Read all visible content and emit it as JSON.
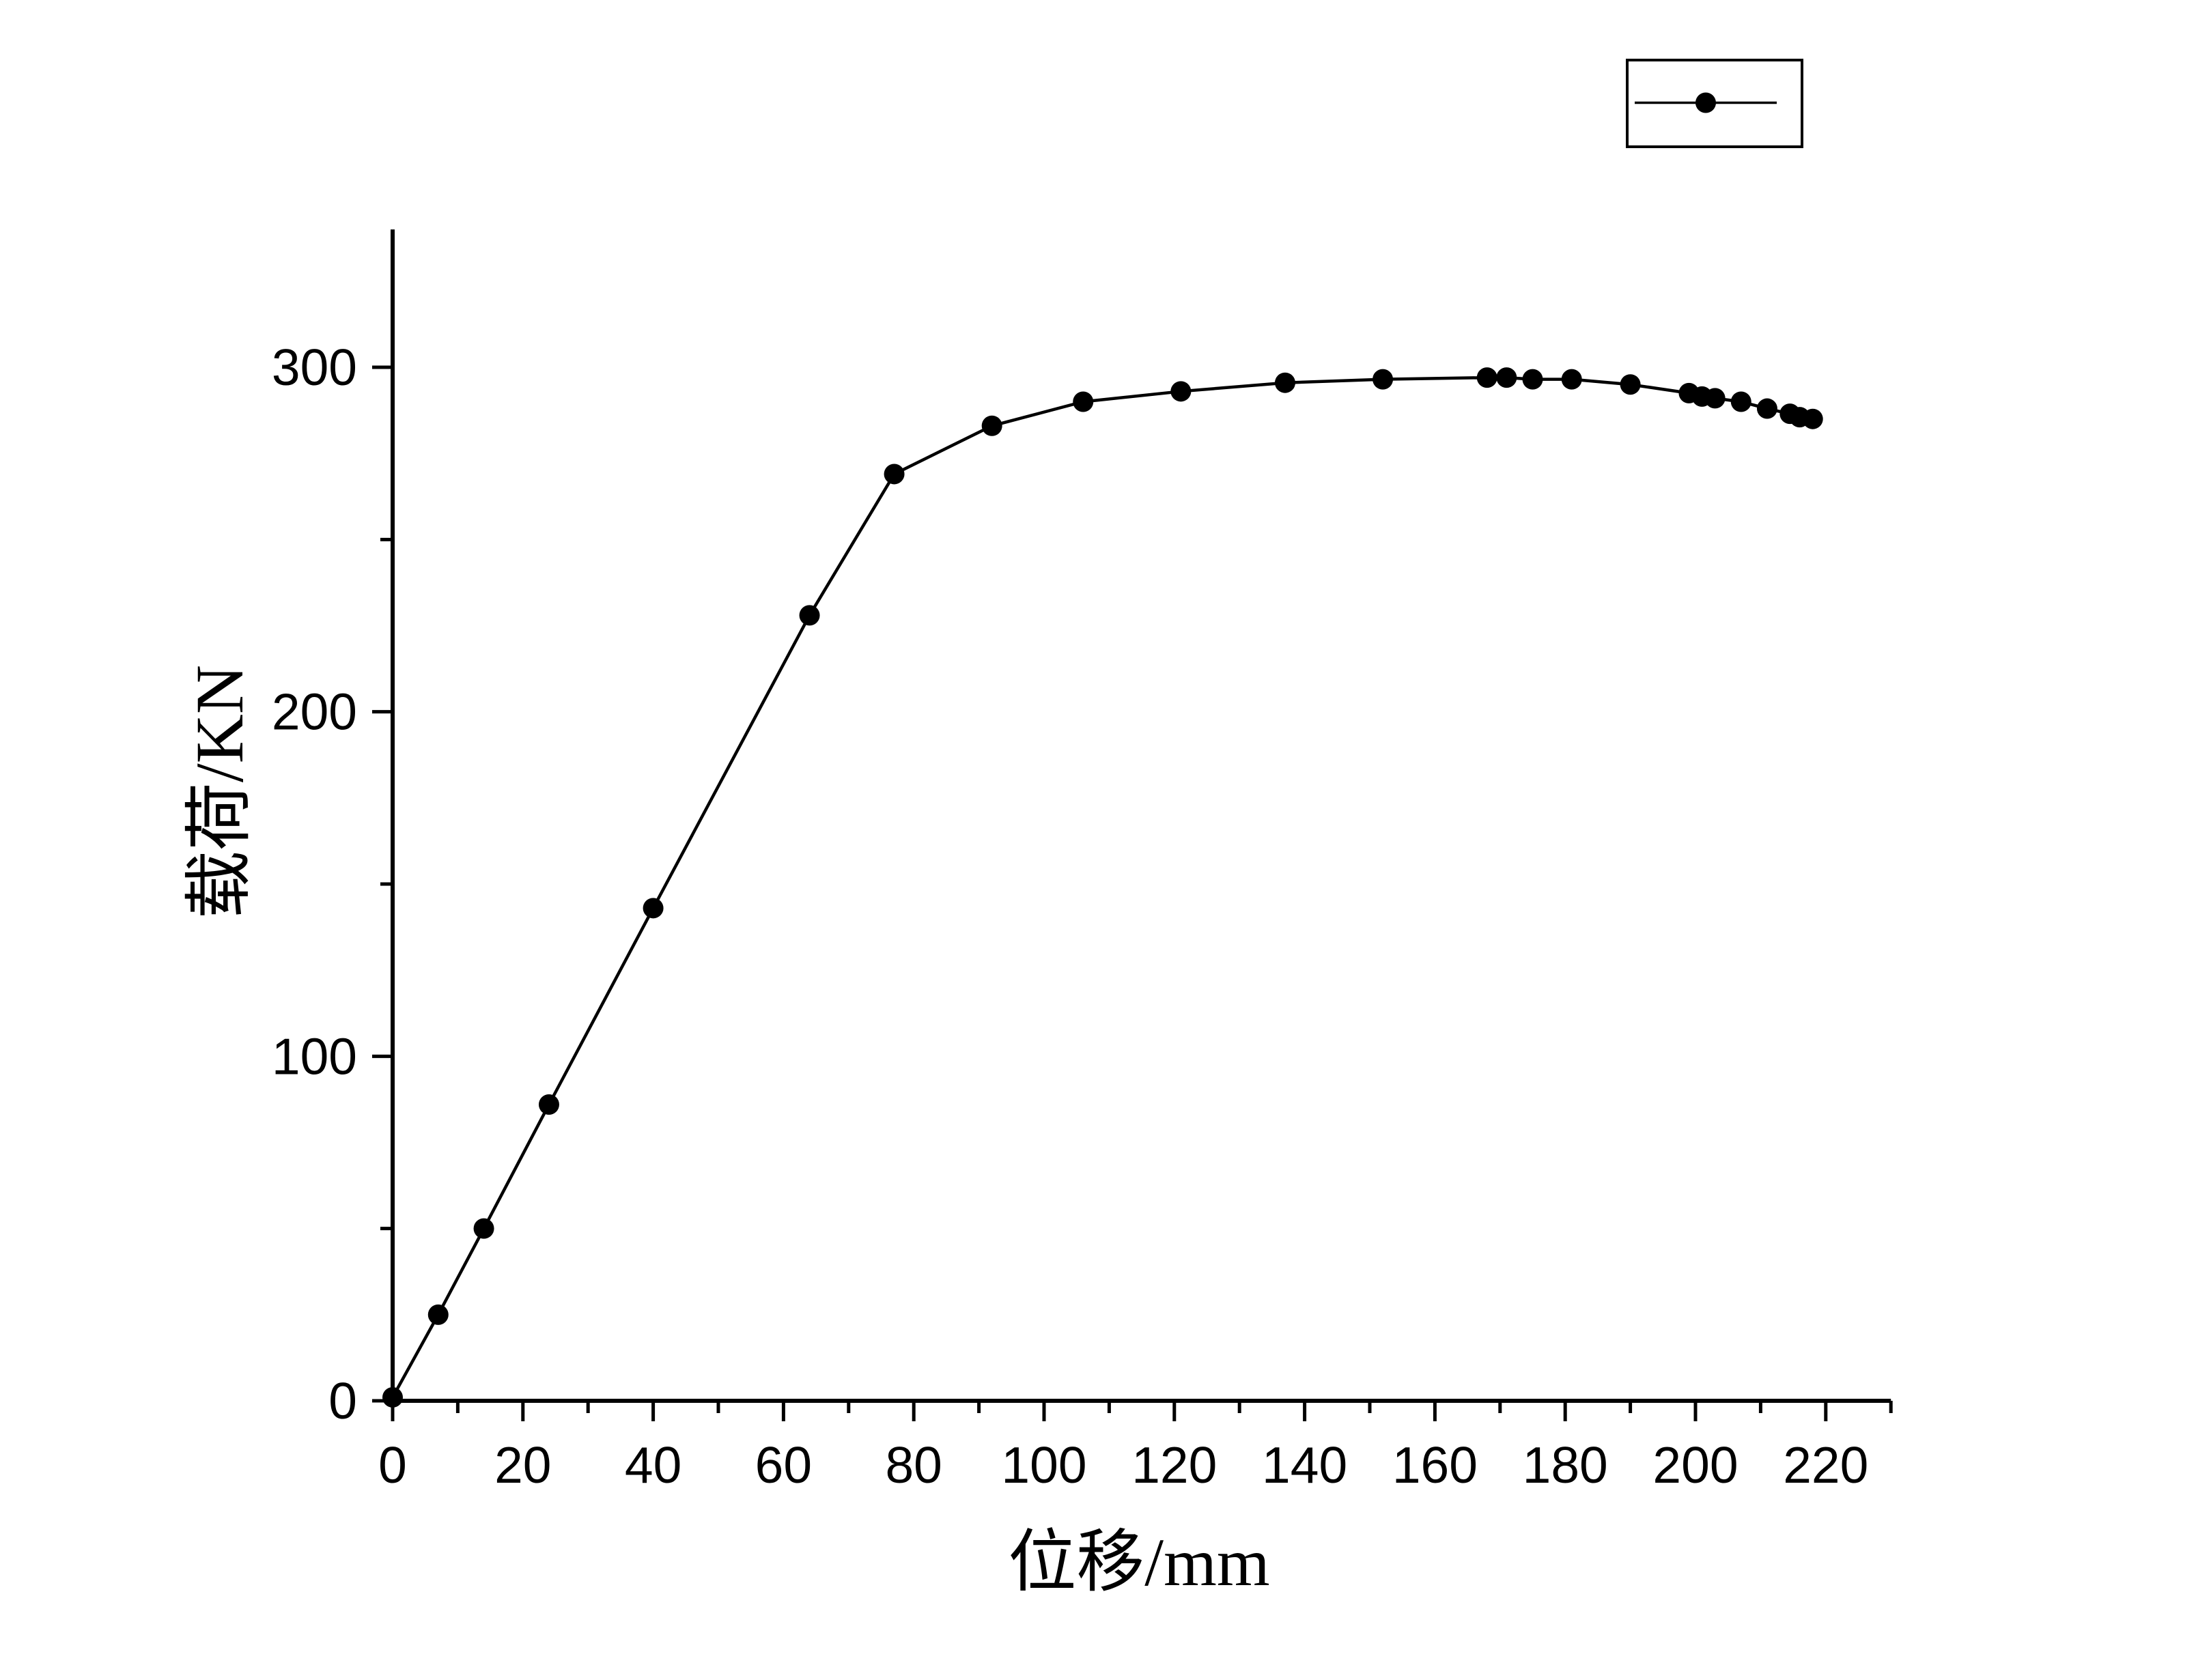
{
  "figure": {
    "background": "#ffffff",
    "ink_color": "#000000"
  },
  "chart_data": {
    "type": "line",
    "title": "",
    "xlabel": "位移/mm",
    "ylabel": "载荷/KN",
    "xlim": [
      0,
      230
    ],
    "ylim": [
      0,
      340
    ],
    "grid": false,
    "axes_drawn": [
      "left",
      "bottom"
    ],
    "legend": {
      "position": "top-right-outside",
      "entries": [
        {
          "label": "",
          "marker": "filled-circle",
          "line": true,
          "color": "#000000"
        }
      ]
    },
    "x_ticks": {
      "major": [
        0,
        20,
        40,
        60,
        80,
        100,
        120,
        140,
        160,
        180,
        200,
        220
      ],
      "labels": [
        "0",
        "20",
        "40",
        "60",
        "80",
        "100",
        "120",
        "140",
        "160",
        "180",
        "200",
        "220"
      ],
      "minor": [
        10,
        30,
        50,
        70,
        90,
        110,
        130,
        150,
        170,
        190,
        210,
        230
      ]
    },
    "y_ticks": {
      "major": [
        0,
        100,
        200,
        300
      ],
      "labels": [
        "0",
        "100",
        "200",
        "300"
      ],
      "minor": [
        50,
        150,
        250
      ]
    },
    "series": [
      {
        "name": "",
        "marker": "filled-circle",
        "color": "#000000",
        "x": [
          0,
          7,
          14,
          24,
          40,
          64,
          77,
          92,
          106,
          121,
          137,
          152,
          168,
          171,
          175,
          181,
          190,
          199,
          201,
          203,
          207,
          211,
          214.5,
          216,
          218
        ],
        "y": [
          1,
          25,
          50,
          86,
          143,
          228,
          269,
          283,
          290,
          293,
          295.5,
          296.5,
          297,
          297,
          296.5,
          296.5,
          295,
          292.5,
          291.5,
          291,
          290,
          288,
          286.5,
          285.5,
          285
        ]
      }
    ]
  }
}
